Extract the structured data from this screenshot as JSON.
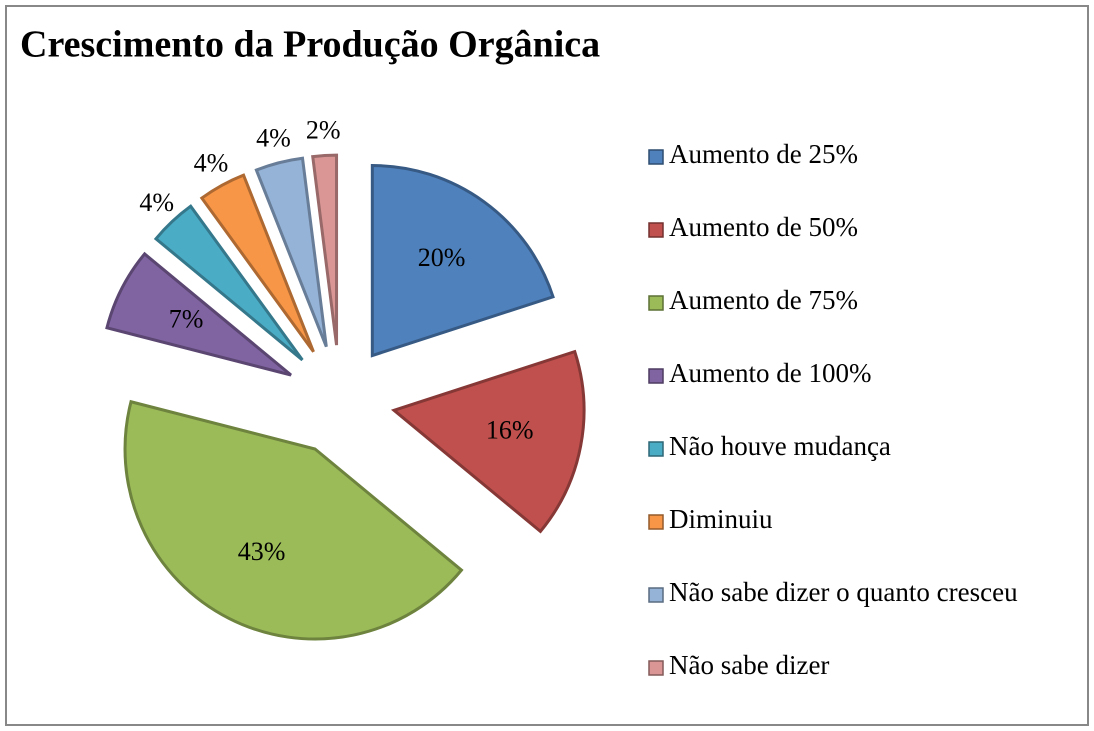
{
  "chart_data": {
    "type": "pie",
    "title": "Crescimento da Produção Orgânica",
    "categories": [
      "Aumento de 25%",
      "Aumento de 50%",
      "Aumento de 75%",
      "Aumento de 100%",
      "Não houve mudança",
      "Diminuiu",
      "Não sabe dizer o quanto cresceu",
      "Não sabe dizer"
    ],
    "values": [
      20,
      16,
      43,
      7,
      4,
      4,
      4,
      2
    ],
    "value_labels": [
      "20%",
      "16%",
      "43%",
      "7%",
      "4%",
      "4%",
      "4%",
      "2%"
    ],
    "colors": [
      "#4f81bd",
      "#c0504d",
      "#9bbb59",
      "#8064a2",
      "#4bacc6",
      "#f79646",
      "#95b3d7",
      "#d99694"
    ],
    "legend": "right"
  }
}
